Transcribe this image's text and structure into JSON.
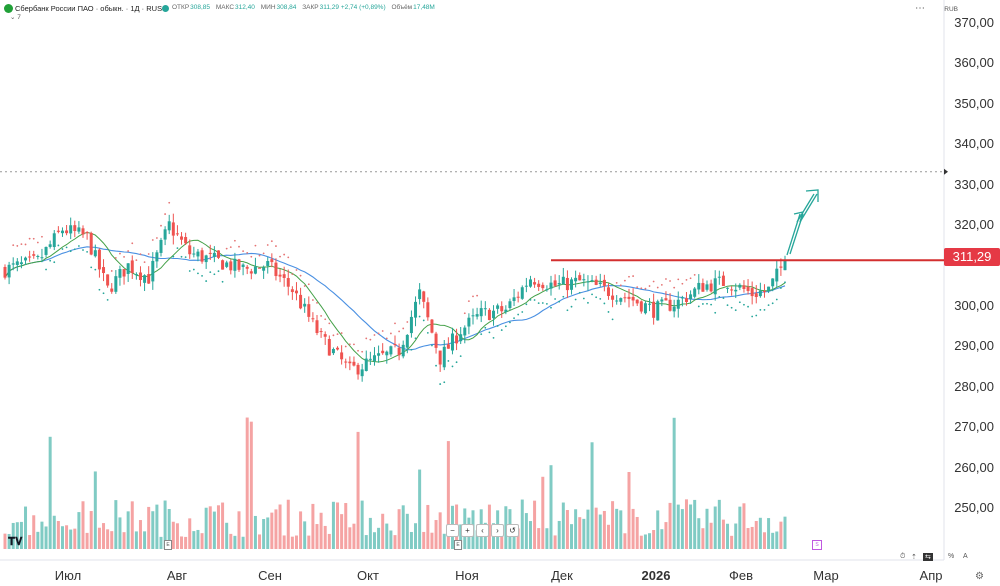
{
  "header": {
    "title": "Сбербанк России ПАО · обыкн. · 1Д · RUS",
    "indicator_count": "7",
    "currency": "RUB",
    "ohlc": [
      {
        "key": "ОТКР",
        "value": "308,85"
      },
      {
        "key": "МАКС",
        "value": "312,40"
      },
      {
        "key": "МИН",
        "value": "308,84"
      },
      {
        "key": "ЗАКР",
        "value": "311,29 +2,74 (+0,89%)"
      },
      {
        "key": "Объём",
        "value": "17,48M"
      }
    ]
  },
  "last_price": "311,29",
  "nav_buttons": [
    "−",
    "+",
    "‹",
    "›",
    "↺"
  ],
  "bottom_right": {
    "percent": "%",
    "log": "log",
    "auto": "A"
  },
  "colors": {
    "up": "#26a69a",
    "down": "#ef5350",
    "vol_up": "#80cbc4",
    "vol_down": "#f5a3a3",
    "sma_blue": "#4a90e2",
    "sma_green": "#43a047",
    "line_red": "#d32f2f",
    "psar": "#e57373",
    "psar_up": "#26a69a",
    "arrow": "#26a69a"
  },
  "chart_data": {
    "type": "candlestick",
    "y_ticks": [
      "370,00",
      "360,00",
      "350,00",
      "340,00",
      "330,00",
      "320,00",
      "300,00",
      "290,00",
      "280,00",
      "270,00",
      "260,00",
      "250,00"
    ],
    "ylim": [
      243,
      375
    ],
    "x_ticks": [
      "Июл",
      "Авг",
      "Сен",
      "Окт",
      "Ноя",
      "Дек",
      "2026",
      "Фев",
      "Мар",
      "Апр"
    ],
    "horizontal_line": 311.29,
    "dotted_level": 333.2,
    "anchors": [
      {
        "i": 0,
        "p": 309
      },
      {
        "i": 8,
        "p": 311
      },
      {
        "i": 14,
        "p": 319
      },
      {
        "i": 20,
        "p": 317
      },
      {
        "i": 25,
        "p": 304
      },
      {
        "i": 30,
        "p": 310
      },
      {
        "i": 35,
        "p": 307
      },
      {
        "i": 40,
        "p": 320
      },
      {
        "i": 45,
        "p": 313
      },
      {
        "i": 52,
        "p": 311
      },
      {
        "i": 58,
        "p": 309
      },
      {
        "i": 64,
        "p": 310
      },
      {
        "i": 70,
        "p": 304
      },
      {
        "i": 77,
        "p": 292
      },
      {
        "i": 84,
        "p": 284
      },
      {
        "i": 91,
        "p": 287
      },
      {
        "i": 96,
        "p": 289
      },
      {
        "i": 101,
        "p": 303
      },
      {
        "i": 106,
        "p": 287
      },
      {
        "i": 111,
        "p": 294
      },
      {
        "i": 116,
        "p": 298
      },
      {
        "i": 122,
        "p": 299
      },
      {
        "i": 128,
        "p": 307
      },
      {
        "i": 134,
        "p": 305
      },
      {
        "i": 140,
        "p": 306
      },
      {
        "i": 146,
        "p": 304
      },
      {
        "i": 152,
        "p": 302
      },
      {
        "i": 158,
        "p": 299
      },
      {
        "i": 164,
        "p": 301
      },
      {
        "i": 170,
        "p": 305
      },
      {
        "i": 176,
        "p": 306
      },
      {
        "i": 182,
        "p": 303
      },
      {
        "i": 186,
        "p": 304
      },
      {
        "i": 190,
        "p": 311
      }
    ],
    "count": 191,
    "x_start": 5,
    "x_end": 785
  }
}
